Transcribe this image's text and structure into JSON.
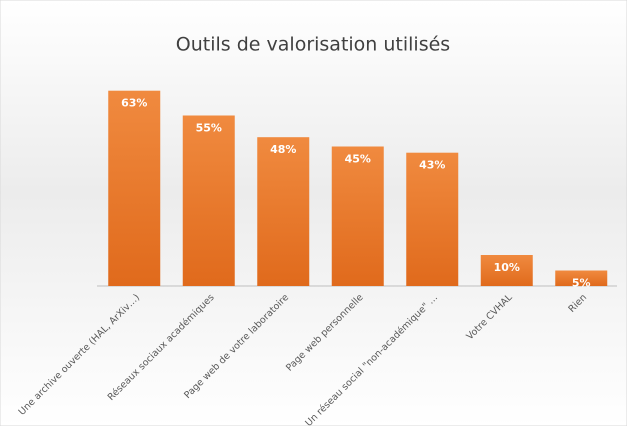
{
  "chart_data": {
    "type": "bar",
    "title": "Outils de valorisation utilisés",
    "categories": [
      "Une archive ouverte (HAL, ArXiv…)",
      "Réseaux sociaux académiques",
      "Page web de votre laboratoire",
      "Page web personnelle",
      "Un réseau social \"non-académique\" …",
      "Votre CVHAL",
      "Rien"
    ],
    "values": [
      63,
      55,
      48,
      45,
      43,
      10,
      5
    ],
    "value_labels": [
      "63%",
      "55%",
      "48%",
      "45%",
      "43%",
      "10%",
      "5%"
    ],
    "color": "#ed7d31"
  }
}
